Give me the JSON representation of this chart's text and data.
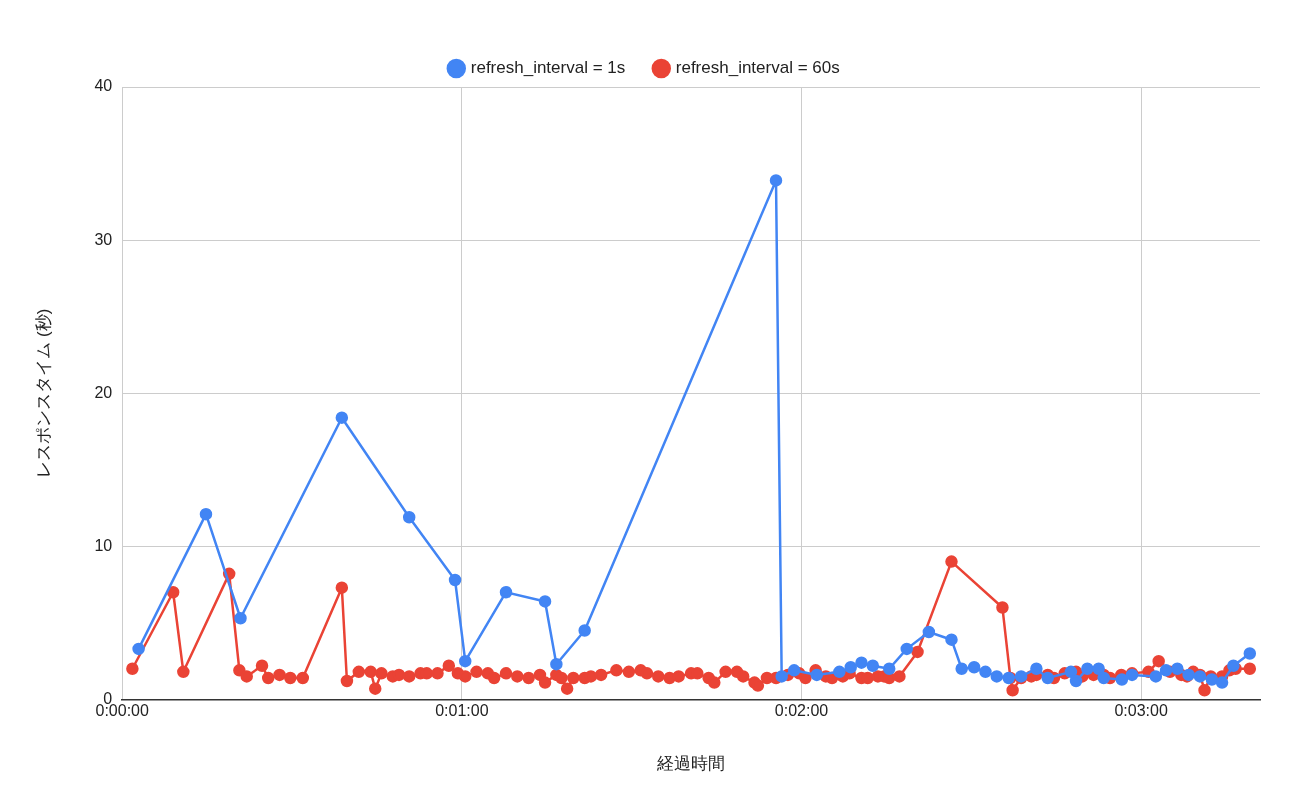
{
  "chart_data": {
    "type": "line",
    "xlabel": "経過時間",
    "ylabel": "レスポンスタイム (秒)",
    "legend": "top",
    "grid": true,
    "marker": "circle",
    "xlim": [
      0,
      201
    ],
    "xticks": [
      {
        "value": 0,
        "label": "0:00:00"
      },
      {
        "value": 60,
        "label": "0:01:00"
      },
      {
        "value": 120,
        "label": "0:02:00"
      },
      {
        "value": 180,
        "label": "0:03:00"
      }
    ],
    "ylim": [
      0,
      40
    ],
    "yticks": [
      0,
      10,
      20,
      30,
      40
    ],
    "series": [
      {
        "name": "refresh_interval = 1s",
        "color": "#4285f4",
        "x": [
          2.9,
          14.8,
          20.9,
          38.8,
          50.7,
          58.8,
          60.6,
          67.8,
          74.7,
          76.7,
          81.7,
          115.5,
          116.5,
          118.7,
          122.7,
          126.7,
          128.7,
          130.6,
          132.6,
          135.5,
          138.6,
          142.5,
          146.5,
          148.3,
          150.5,
          152.5,
          154.5,
          156.6,
          158.8,
          161.5,
          163.5,
          167.6,
          168.5,
          170.5,
          172.5,
          173.4,
          176.6,
          178.4,
          182.6,
          184.4,
          186.4,
          188.4,
          190.4,
          192.5,
          194.3,
          196.3,
          199.2
        ],
        "values": [
          3.3,
          12.1,
          5.3,
          18.4,
          11.9,
          7.8,
          2.5,
          7.0,
          6.4,
          2.3,
          4.5,
          33.9,
          1.5,
          1.9,
          1.6,
          1.8,
          2.1,
          2.4,
          2.2,
          2.0,
          3.3,
          4.4,
          3.9,
          2.0,
          2.1,
          1.8,
          1.5,
          1.4,
          1.5,
          2.0,
          1.4,
          1.8,
          1.2,
          2.0,
          2.0,
          1.4,
          1.3,
          1.6,
          1.5,
          1.9,
          2.0,
          1.6,
          1.5,
          1.3,
          1.1,
          2.2,
          3.0
        ]
      },
      {
        "name": "refresh_interval = 60s",
        "color": "#ea4335",
        "x": [
          1.8,
          9.0,
          10.8,
          18.9,
          20.7,
          22.0,
          24.7,
          25.8,
          27.8,
          29.7,
          31.9,
          38.8,
          39.7,
          41.8,
          43.9,
          44.7,
          45.8,
          47.8,
          48.9,
          50.7,
          52.7,
          53.8,
          55.7,
          57.7,
          59.3,
          60.6,
          62.6,
          64.6,
          65.7,
          67.8,
          69.8,
          71.8,
          73.8,
          74.7,
          76.7,
          77.6,
          78.6,
          79.7,
          81.7,
          82.8,
          84.6,
          87.3,
          89.5,
          91.6,
          92.7,
          94.7,
          96.7,
          98.3,
          100.5,
          101.6,
          103.6,
          104.6,
          106.6,
          108.6,
          109.7,
          111.7,
          112.3,
          113.9,
          115.5,
          117.6,
          119.6,
          120.7,
          122.5,
          124.3,
          125.4,
          127.3,
          128.5,
          130.6,
          131.7,
          133.5,
          134.6,
          135.5,
          137.3,
          140.5,
          146.5,
          155.5,
          156.9,
          157.3,
          158.8,
          160.6,
          161.5,
          163.5,
          164.6,
          166.5,
          168.5,
          169.6,
          171.6,
          173.4,
          174.5,
          176.5,
          178.4,
          181.3,
          183.1,
          185.1,
          187.1,
          188.1,
          189.2,
          190.4,
          191.2,
          192.3,
          194.3,
          195.6,
          196.7,
          199.2
        ],
        "values": [
          2.0,
          7.0,
          1.8,
          8.2,
          1.9,
          1.5,
          2.2,
          1.4,
          1.6,
          1.4,
          1.4,
          7.3,
          1.2,
          1.8,
          1.8,
          0.7,
          1.7,
          1.5,
          1.6,
          1.5,
          1.7,
          1.7,
          1.7,
          2.2,
          1.7,
          1.5,
          1.8,
          1.7,
          1.4,
          1.7,
          1.5,
          1.4,
          1.6,
          1.1,
          1.6,
          1.4,
          0.7,
          1.4,
          1.4,
          1.5,
          1.6,
          1.9,
          1.8,
          1.9,
          1.7,
          1.5,
          1.4,
          1.5,
          1.7,
          1.7,
          1.4,
          1.1,
          1.8,
          1.8,
          1.5,
          1.1,
          0.9,
          1.4,
          1.4,
          1.6,
          1.7,
          1.4,
          1.9,
          1.5,
          1.4,
          1.5,
          1.7,
          1.4,
          1.4,
          1.5,
          1.5,
          1.4,
          1.5,
          3.1,
          9.0,
          6.0,
          1.4,
          0.6,
          1.4,
          1.5,
          1.6,
          1.6,
          1.4,
          1.7,
          1.8,
          1.5,
          1.6,
          1.6,
          1.4,
          1.6,
          1.7,
          1.8,
          2.5,
          1.8,
          1.6,
          1.5,
          1.8,
          1.6,
          0.6,
          1.5,
          1.5,
          1.9,
          2.0,
          2.0
        ]
      }
    ]
  }
}
